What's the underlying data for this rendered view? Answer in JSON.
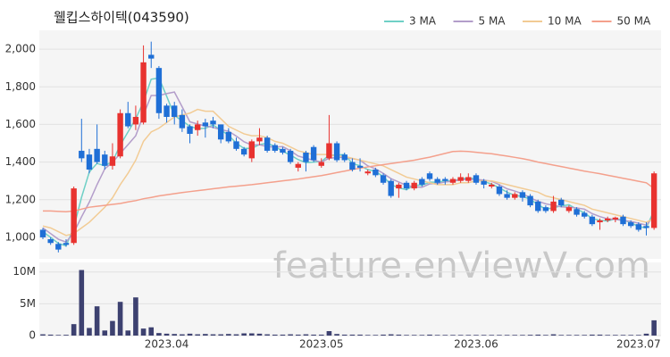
{
  "watermark": "feature.enViewV.com",
  "chart_data": [
    {
      "type": "candlestick",
      "title": "웰킵스하이텍(043590)",
      "up_color": "#e8322f",
      "down_color": "#1f6fd6",
      "ylim": [
        900,
        2100
      ],
      "yticks": [
        {
          "value": 1000,
          "label": "1,000"
        },
        {
          "value": 1200,
          "label": "1,200"
        },
        {
          "value": 1400,
          "label": "1,400"
        },
        {
          "value": 1600,
          "label": "1,600"
        },
        {
          "value": 1800,
          "label": "1,800"
        },
        {
          "value": 2000,
          "label": "2,000"
        }
      ],
      "grid": true,
      "legend": "top-right",
      "open": [
        1040,
        990,
        965,
        970,
        970,
        1460,
        1440,
        1470,
        1440,
        1380,
        1430,
        1660,
        1600,
        1610,
        1970,
        1900,
        1700,
        1700,
        1650,
        1590,
        1570,
        1610,
        1620,
        1600,
        1560,
        1510,
        1470,
        1420,
        1510,
        1530,
        1490,
        1470,
        1460,
        1370,
        1450,
        1480,
        1380,
        1420,
        1500,
        1440,
        1400,
        1380,
        1340,
        1360,
        1330,
        1300,
        1260,
        1290,
        1260,
        1310,
        1340,
        1310,
        1310,
        1290,
        1300,
        1300,
        1330,
        1300,
        1270,
        1270,
        1230,
        1210,
        1240,
        1220,
        1190,
        1160,
        1140,
        1200,
        1140,
        1150,
        1130,
        1110,
        1080,
        1090,
        1095,
        1110,
        1080,
        1070,
        1060,
        1050
      ],
      "high": [
        1050,
        1000,
        975,
        990,
        1270,
        1630,
        1470,
        1600,
        1460,
        1500,
        1680,
        1720,
        1700,
        2020,
        2040,
        1910,
        1710,
        1720,
        1680,
        1600,
        1620,
        1630,
        1640,
        1600,
        1580,
        1530,
        1480,
        1520,
        1580,
        1540,
        1500,
        1480,
        1470,
        1400,
        1460,
        1490,
        1420,
        1650,
        1510,
        1450,
        1420,
        1420,
        1360,
        1370,
        1340,
        1310,
        1290,
        1300,
        1300,
        1320,
        1350,
        1320,
        1320,
        1320,
        1340,
        1340,
        1340,
        1310,
        1290,
        1280,
        1250,
        1240,
        1250,
        1230,
        1200,
        1170,
        1220,
        1210,
        1170,
        1160,
        1140,
        1120,
        1100,
        1110,
        1110,
        1120,
        1090,
        1080,
        1080,
        1350
      ],
      "low": [
        990,
        960,
        920,
        950,
        960,
        1400,
        1340,
        1390,
        1360,
        1360,
        1420,
        1580,
        1570,
        1600,
        1900,
        1630,
        1610,
        1600,
        1560,
        1500,
        1540,
        1530,
        1580,
        1500,
        1500,
        1460,
        1430,
        1400,
        1490,
        1450,
        1450,
        1440,
        1390,
        1350,
        1350,
        1400,
        1370,
        1410,
        1400,
        1400,
        1350,
        1350,
        1330,
        1320,
        1280,
        1210,
        1210,
        1250,
        1250,
        1270,
        1300,
        1280,
        1280,
        1280,
        1290,
        1290,
        1280,
        1260,
        1260,
        1220,
        1200,
        1200,
        1190,
        1160,
        1130,
        1130,
        1130,
        1160,
        1130,
        1110,
        1100,
        1060,
        1040,
        1080,
        1080,
        1060,
        1050,
        1030,
        1010,
        1040
      ],
      "close": [
        1000,
        970,
        935,
        960,
        1260,
        1420,
        1360,
        1400,
        1380,
        1430,
        1660,
        1590,
        1640,
        1930,
        1950,
        1660,
        1640,
        1640,
        1580,
        1550,
        1600,
        1590,
        1600,
        1520,
        1510,
        1470,
        1440,
        1510,
        1530,
        1460,
        1460,
        1450,
        1400,
        1390,
        1400,
        1410,
        1400,
        1500,
        1410,
        1410,
        1360,
        1370,
        1350,
        1330,
        1290,
        1220,
        1280,
        1260,
        1290,
        1280,
        1310,
        1290,
        1300,
        1310,
        1320,
        1320,
        1290,
        1280,
        1280,
        1230,
        1210,
        1230,
        1210,
        1170,
        1140,
        1140,
        1190,
        1170,
        1160,
        1120,
        1110,
        1070,
        1090,
        1100,
        1105,
        1070,
        1060,
        1040,
        1050,
        1340
      ],
      "series": [
        {
          "name": "3 MA",
          "color": "#6fd0c6",
          "values": [
            1030,
            1000,
            968,
            955,
            1052,
            1213,
            1347,
            1393,
            1380,
            1403,
            1490,
            1560,
            1630,
            1720,
            1840,
            1847,
            1750,
            1647,
            1620,
            1590,
            1577,
            1580,
            1597,
            1570,
            1543,
            1500,
            1473,
            1473,
            1493,
            1500,
            1483,
            1457,
            1437,
            1413,
            1397,
            1400,
            1403,
            1437,
            1437,
            1440,
            1393,
            1380,
            1360,
            1350,
            1323,
            1280,
            1263,
            1253,
            1277,
            1277,
            1293,
            1293,
            1300,
            1300,
            1310,
            1317,
            1310,
            1297,
            1283,
            1263,
            1240,
            1223,
            1217,
            1203,
            1173,
            1150,
            1157,
            1167,
            1173,
            1150,
            1130,
            1100,
            1090,
            1087,
            1098,
            1092,
            1078,
            1057,
            1050,
            1143
          ]
        },
        {
          "name": "5 MA",
          "color": "#b39dca",
          "values": [
            1050,
            1020,
            990,
            975,
            1025,
            1109,
            1187,
            1280,
            1364,
            1398,
            1446,
            1492,
            1540,
            1650,
            1754,
            1754,
            1764,
            1772,
            1694,
            1614,
            1602,
            1592,
            1584,
            1572,
            1564,
            1538,
            1508,
            1490,
            1492,
            1482,
            1480,
            1482,
            1460,
            1432,
            1420,
            1410,
            1400,
            1420,
            1424,
            1426,
            1418,
            1410,
            1380,
            1364,
            1340,
            1312,
            1294,
            1276,
            1268,
            1266,
            1284,
            1286,
            1294,
            1298,
            1306,
            1308,
            1308,
            1304,
            1298,
            1280,
            1258,
            1246,
            1232,
            1210,
            1192,
            1178,
            1170,
            1162,
            1160,
            1156,
            1150,
            1126,
            1110,
            1098,
            1095,
            1089,
            1085,
            1075,
            1065,
            1112
          ]
        },
        {
          "name": "10 MA",
          "color": "#f2cb94",
          "values": [
            1060,
            1050,
            1030,
            1010,
            1020,
            1050,
            1080,
            1120,
            1160,
            1210,
            1280,
            1340,
            1410,
            1510,
            1560,
            1580,
            1610,
            1640,
            1650,
            1660,
            1680,
            1670,
            1670,
            1630,
            1590,
            1570,
            1550,
            1540,
            1540,
            1530,
            1510,
            1500,
            1480,
            1460,
            1450,
            1440,
            1440,
            1440,
            1430,
            1430,
            1420,
            1410,
            1400,
            1390,
            1380,
            1360,
            1340,
            1320,
            1310,
            1300,
            1290,
            1280,
            1280,
            1280,
            1290,
            1290,
            1300,
            1300,
            1300,
            1290,
            1280,
            1270,
            1260,
            1250,
            1240,
            1220,
            1210,
            1200,
            1190,
            1180,
            1170,
            1150,
            1140,
            1130,
            1120,
            1110,
            1100,
            1090,
            1080,
            1100
          ]
        },
        {
          "name": "50 MA",
          "color": "#f4a08c",
          "values": [
            1140,
            1140,
            1138,
            1136,
            1140,
            1150,
            1160,
            1165,
            1170,
            1175,
            1180,
            1188,
            1195,
            1205,
            1212,
            1220,
            1226,
            1232,
            1238,
            1243,
            1248,
            1253,
            1258,
            1263,
            1268,
            1272,
            1276,
            1280,
            1285,
            1290,
            1295,
            1300,
            1305,
            1310,
            1316,
            1322,
            1328,
            1336,
            1344,
            1352,
            1360,
            1368,
            1374,
            1380,
            1386,
            1392,
            1398,
            1404,
            1410,
            1418,
            1426,
            1436,
            1446,
            1456,
            1458,
            1456,
            1452,
            1448,
            1444,
            1438,
            1432,
            1425,
            1418,
            1410,
            1400,
            1392,
            1384,
            1376,
            1368,
            1360,
            1352,
            1345,
            1338,
            1330,
            1322,
            1314,
            1306,
            1298,
            1290,
            1260
          ]
        }
      ]
    },
    {
      "type": "bar",
      "color": "#3d4170",
      "ylim": [
        0,
        11500000
      ],
      "yticks": [
        0,
        {
          "value": 5000000,
          "label": "5M"
        },
        {
          "value": 10000000,
          "label": "10M"
        }
      ],
      "categories": [
        null,
        null,
        null,
        null,
        null,
        null,
        null,
        null,
        null,
        null,
        null,
        null,
        null,
        null,
        null,
        null,
        "2023.04",
        null,
        null,
        null,
        null,
        null,
        null,
        null,
        null,
        null,
        null,
        null,
        null,
        null,
        null,
        null,
        null,
        null,
        null,
        null,
        "2023.05",
        null,
        null,
        null,
        null,
        null,
        null,
        null,
        null,
        null,
        null,
        null,
        null,
        null,
        null,
        null,
        null,
        null,
        null,
        null,
        "2023.06",
        null,
        null,
        null,
        null,
        null,
        null,
        null,
        null,
        null,
        null,
        null,
        null,
        null,
        null,
        null,
        null,
        null,
        null,
        null,
        null,
        "2023.07",
        null,
        null
      ],
      "values": [
        200000,
        150000,
        100000,
        120000,
        1800000,
        10300000,
        1200000,
        4600000,
        800000,
        2300000,
        5300000,
        800000,
        6000000,
        1100000,
        1300000,
        400000,
        300000,
        250000,
        200000,
        300000,
        200000,
        250000,
        200000,
        200000,
        250000,
        200000,
        350000,
        350000,
        300000,
        200000,
        150000,
        150000,
        200000,
        150000,
        200000,
        150000,
        150000,
        700000,
        250000,
        150000,
        150000,
        150000,
        100000,
        100000,
        150000,
        200000,
        150000,
        100000,
        100000,
        100000,
        150000,
        100000,
        100000,
        100000,
        100000,
        100000,
        100000,
        100000,
        100000,
        100000,
        100000,
        100000,
        100000,
        120000,
        150000,
        100000,
        200000,
        100000,
        100000,
        100000,
        100000,
        150000,
        150000,
        100000,
        100000,
        100000,
        100000,
        100000,
        300000,
        2400000
      ]
    }
  ]
}
